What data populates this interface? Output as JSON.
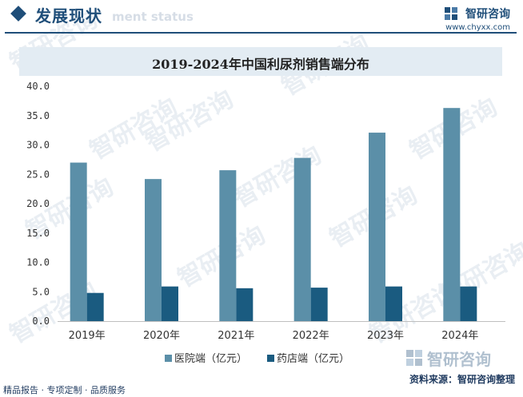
{
  "header": {
    "section_title": "发展现状",
    "section_subtitle": "ment status",
    "brand_name": "智研咨询",
    "brand_url": "www.chyxx.com"
  },
  "footer": {
    "left_text": "精品报告 · 专项定制 · 品质服务",
    "source_text": "资料来源：智研咨询整理",
    "logo_text": "智研咨询"
  },
  "watermark": {
    "text": "智研咨询"
  },
  "colors": {
    "accent": "#1f4e79",
    "series_hospital": "#5b8fa8",
    "series_pharmacy": "#1a5b80"
  },
  "chart_data": {
    "type": "bar",
    "title": "2019-2024年中国利尿剂销售端分布",
    "categories": [
      "2019年",
      "2020年",
      "2021年",
      "2022年",
      "2023年",
      "2024年"
    ],
    "series": [
      {
        "name": "医院端（亿元）",
        "values": [
          27.0,
          24.2,
          25.7,
          27.8,
          32.1,
          36.3
        ]
      },
      {
        "name": "药店端（亿元）",
        "values": [
          4.8,
          5.9,
          5.6,
          5.7,
          5.9,
          5.9
        ]
      }
    ],
    "ylim": [
      0,
      40
    ],
    "yticks": [
      "0.0",
      "5.0",
      "10.0",
      "15.0",
      "20.0",
      "25.0",
      "30.0",
      "35.0",
      "40.0"
    ],
    "grid": false,
    "legend": "bottom"
  }
}
